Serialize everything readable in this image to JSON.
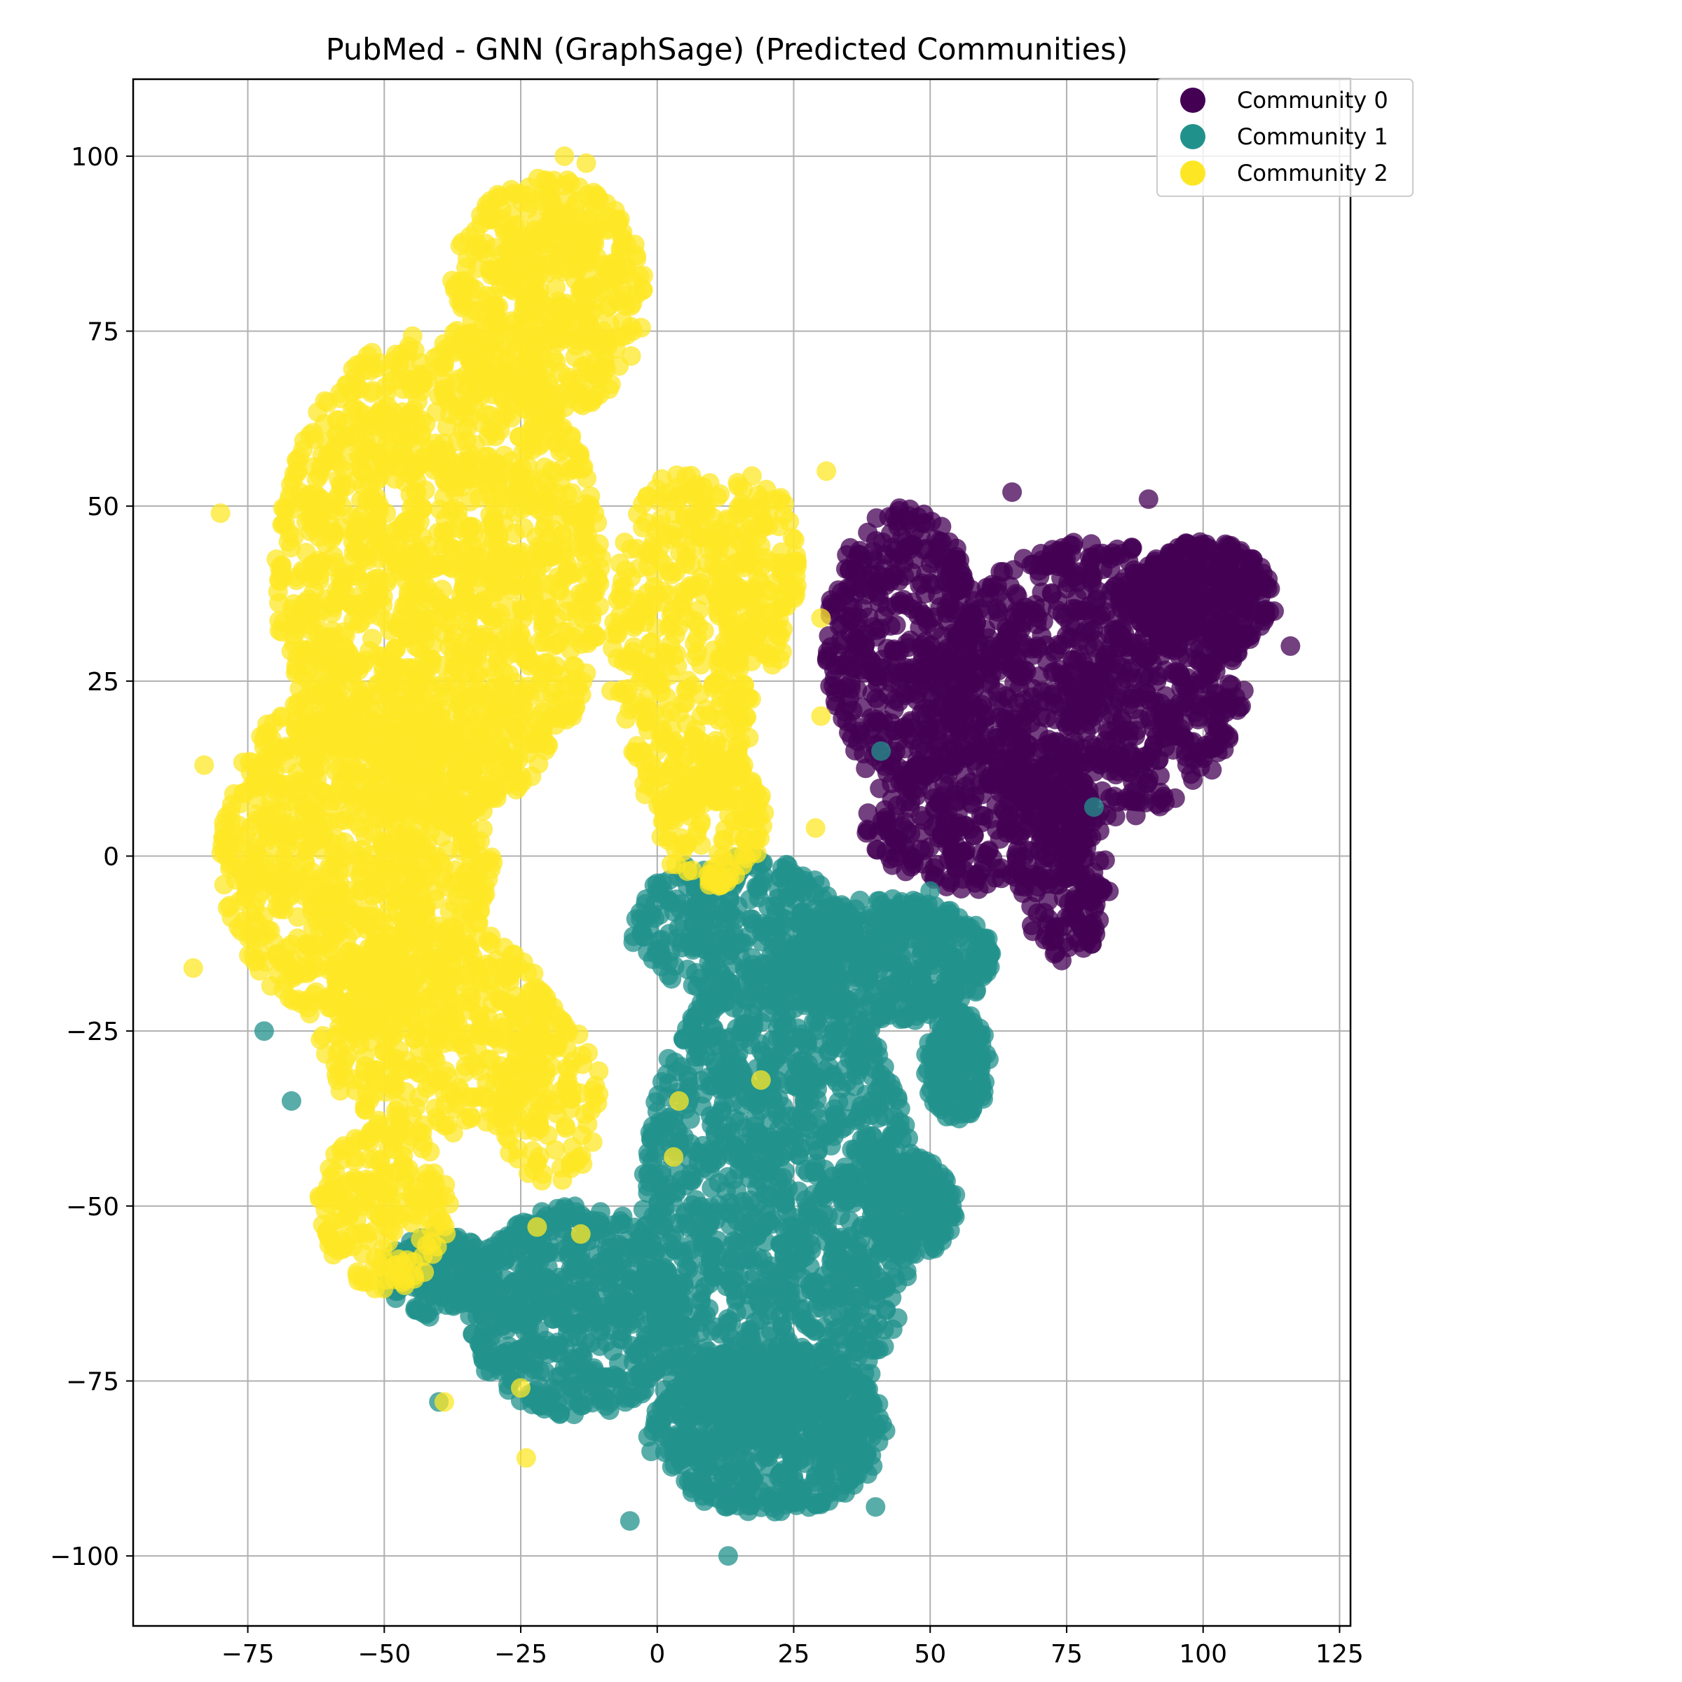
{
  "chart_data": {
    "type": "scatter",
    "title": "PubMed - GNN (GraphSage) (Predicted Communities)",
    "xlabel": "",
    "ylabel": "",
    "xlim": [
      -96,
      127
    ],
    "ylim": [
      -110,
      111
    ],
    "xticks": [
      -75,
      -50,
      -25,
      0,
      25,
      50,
      75,
      100,
      125
    ],
    "yticks": [
      -100,
      -75,
      -50,
      -25,
      0,
      25,
      50,
      75,
      100
    ],
    "xtick_labels": [
      "−75",
      "−50",
      "−25",
      "0",
      "25",
      "50",
      "75",
      "100",
      "125"
    ],
    "ytick_labels": [
      "−100",
      "−75",
      "−50",
      "−25",
      "0",
      "25",
      "50",
      "75",
      "100"
    ],
    "grid": true,
    "legend_position": "top-right",
    "series": [
      {
        "name": "Community 0",
        "color": "#440154",
        "regions": [
          {
            "cx": 80,
            "cy": 25,
            "rx": 28,
            "ry": 20,
            "n": 900
          },
          {
            "cx": 45,
            "cy": 30,
            "rx": 14,
            "ry": 20,
            "n": 450
          },
          {
            "cx": 100,
            "cy": 37,
            "rx": 13,
            "ry": 8,
            "n": 300
          },
          {
            "cx": 60,
            "cy": 5,
            "rx": 22,
            "ry": 10,
            "n": 350
          },
          {
            "cx": 75,
            "cy": -5,
            "rx": 8,
            "ry": 10,
            "n": 120
          }
        ],
        "points": [
          [
            116,
            30
          ],
          [
            113,
            35
          ],
          [
            105,
            43
          ],
          [
            65,
            52
          ],
          [
            90,
            51
          ],
          [
            46,
            48
          ]
        ]
      },
      {
        "name": "Community 1",
        "color": "#21918c",
        "regions": [
          {
            "cx": 22,
            "cy": -50,
            "rx": 25,
            "ry": 35,
            "n": 1300
          },
          {
            "cx": 20,
            "cy": -82,
            "rx": 22,
            "ry": 12,
            "n": 550
          },
          {
            "cx": -15,
            "cy": -65,
            "rx": 20,
            "ry": 15,
            "n": 600
          },
          {
            "cx": 42,
            "cy": -15,
            "rx": 20,
            "ry": 9,
            "n": 450
          },
          {
            "cx": 47,
            "cy": -50,
            "rx": 8,
            "ry": 7,
            "n": 200
          },
          {
            "cx": 55,
            "cy": -30,
            "rx": 6,
            "ry": 8,
            "n": 150
          },
          {
            "cx": -40,
            "cy": -60,
            "rx": 10,
            "ry": 6,
            "n": 150
          },
          {
            "cx": 15,
            "cy": -10,
            "rx": 20,
            "ry": 10,
            "n": 300
          }
        ],
        "points": [
          [
            13,
            -100
          ],
          [
            40,
            -93
          ],
          [
            -5,
            -95
          ],
          [
            -67,
            -35
          ],
          [
            -72,
            -25
          ],
          [
            50,
            -5
          ],
          [
            80,
            7
          ],
          [
            41,
            15
          ],
          [
            -40,
            -78
          ]
        ]
      },
      {
        "name": "Community 2",
        "color": "#fde725",
        "regions": [
          {
            "cx": -40,
            "cy": 40,
            "rx": 30,
            "ry": 35,
            "n": 1500
          },
          {
            "cx": -55,
            "cy": 0,
            "rx": 25,
            "ry": 25,
            "n": 900
          },
          {
            "cx": -20,
            "cy": 80,
            "rx": 18,
            "ry": 17,
            "n": 500
          },
          {
            "cx": 5,
            "cy": 30,
            "rx": 14,
            "ry": 25,
            "n": 400
          },
          {
            "cx": -40,
            "cy": -25,
            "rx": 22,
            "ry": 15,
            "n": 450
          },
          {
            "cx": -50,
            "cy": -50,
            "rx": 12,
            "ry": 12,
            "n": 200
          },
          {
            "cx": -20,
            "cy": -35,
            "rx": 10,
            "ry": 12,
            "n": 120
          },
          {
            "cx": 18,
            "cy": 40,
            "rx": 8,
            "ry": 15,
            "n": 150
          },
          {
            "cx": 10,
            "cy": 5,
            "rx": 10,
            "ry": 10,
            "n": 150
          }
        ],
        "points": [
          [
            -17,
            100
          ],
          [
            -13,
            99
          ],
          [
            -85,
            -16
          ],
          [
            -83,
            13
          ],
          [
            -80,
            49
          ],
          [
            -24,
            -86
          ],
          [
            -25,
            -76
          ],
          [
            -39,
            -78
          ],
          [
            19,
            -32
          ],
          [
            4,
            -35
          ],
          [
            3,
            -43
          ],
          [
            31,
            55
          ],
          [
            30,
            34
          ],
          [
            30,
            20
          ],
          [
            29,
            4
          ],
          [
            -22,
            -53
          ],
          [
            -14,
            -54
          ]
        ]
      }
    ]
  }
}
